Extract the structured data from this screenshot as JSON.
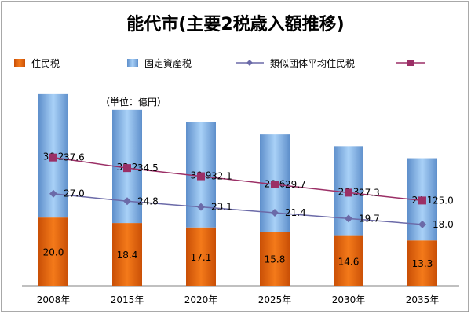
{
  "chart_data": {
    "type": "bar",
    "title": "能代市(主要2税歳入額推移)",
    "unit_note": "（単位：億円）",
    "categories": [
      "2008年",
      "2015年",
      "2020年",
      "2025年",
      "2030年",
      "2035年"
    ],
    "bar_series": [
      {
        "name": "住民税",
        "values": [
          20.0,
          18.4,
          17.1,
          15.8,
          14.6,
          13.3
        ],
        "color": "#e8620a"
      },
      {
        "name": "固定資産税",
        "values": [
          36.2,
          33.2,
          30.9,
          28.6,
          26.3,
          24.1
        ],
        "color": "#8ebff0"
      }
    ],
    "line_series": [
      {
        "name": "類似団体平均住民税",
        "values": [
          27.0,
          24.8,
          23.1,
          21.4,
          19.7,
          18.0
        ],
        "color": "#6b6aa8",
        "marker": "diamond"
      },
      {
        "name": "",
        "values": [
          37.6,
          34.5,
          32.1,
          29.7,
          27.3,
          25.0
        ],
        "color": "#9b2f66",
        "marker": "square"
      }
    ],
    "bar_stacked": true,
    "ylim": [
      0,
      64
    ],
    "grid": false,
    "legend_position": "top"
  }
}
